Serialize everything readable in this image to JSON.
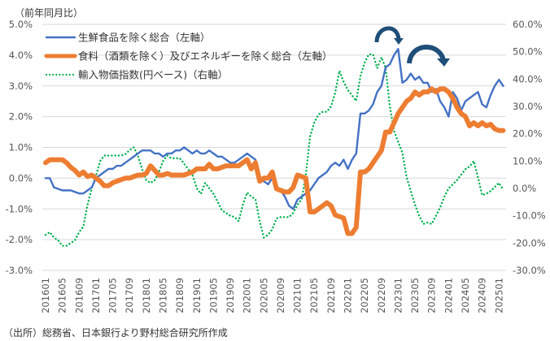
{
  "chart_data": {
    "type": "line",
    "y_title": "（前年同月比）",
    "x_start": "201601",
    "x_tick_labels": [
      "201601",
      "201605",
      "201609",
      "201701",
      "201705",
      "201709",
      "201801",
      "201805",
      "201809",
      "201901",
      "201905",
      "201909",
      "202001",
      "202005",
      "202009",
      "202101",
      "202105",
      "202109",
      "202201",
      "202205",
      "202209",
      "202301",
      "202305",
      "202309",
      "202401",
      "202405",
      "202409",
      "202501"
    ],
    "left_axis": {
      "min": -3,
      "max": 5,
      "step": 1,
      "labels": [
        "5.0%",
        "4.0%",
        "3.0%",
        "2.0%",
        "1.0%",
        "0.0%",
        "-1.0%",
        "-2.0%",
        "-3.0%"
      ]
    },
    "right_axis": {
      "min": -30,
      "max": 60,
      "step": 10,
      "labels": [
        "60.0%",
        "50.0%",
        "40.0%",
        "30.0%",
        "20.0%",
        "10.0%",
        "0.0%",
        "-10.0%",
        "-20.0%",
        "-30.0%"
      ]
    },
    "grid": true,
    "legend_position": "top-left",
    "series": [
      {
        "name": "生鮮食品を除く総合（左軸）",
        "axis": "left",
        "color": "#4472C4",
        "style": "solid",
        "values": [
          0.0,
          0.0,
          -0.3,
          -0.35,
          -0.4,
          -0.4,
          -0.4,
          -0.45,
          -0.5,
          -0.5,
          -0.4,
          -0.3,
          0.0,
          0.1,
          0.2,
          0.3,
          0.3,
          0.4,
          0.4,
          0.5,
          0.6,
          0.7,
          0.8,
          0.9,
          0.9,
          0.9,
          0.8,
          0.8,
          0.7,
          0.8,
          0.8,
          0.9,
          0.9,
          1.0,
          0.9,
          0.8,
          0.9,
          0.8,
          0.8,
          0.9,
          0.8,
          0.7,
          0.7,
          0.6,
          0.5,
          0.5,
          0.6,
          0.7,
          0.8,
          0.7,
          0.6,
          -0.1,
          -0.1,
          -0.2,
          0.0,
          -0.3,
          -0.4,
          -0.6,
          -0.9,
          -1.0,
          -0.7,
          -0.6,
          -0.5,
          -0.4,
          -0.2,
          0.0,
          0.1,
          0.2,
          0.4,
          0.5,
          0.4,
          0.6,
          0.3,
          0.6,
          0.8,
          2.1,
          2.1,
          2.2,
          2.4,
          2.8,
          3.0,
          3.6,
          3.7,
          4.0,
          4.2,
          3.1,
          3.2,
          3.4,
          3.2,
          3.3,
          3.1,
          3.1,
          2.8,
          2.9,
          2.5,
          2.3,
          2.0,
          2.8,
          2.6,
          2.2,
          2.5,
          2.6,
          2.7,
          2.8,
          2.4,
          2.3,
          2.7,
          3.0,
          3.2,
          3.0
        ]
      },
      {
        "name": "食料（酒類を除く）及びエネルギーを除く総合（左軸）",
        "axis": "left",
        "color": "#ED7D31",
        "style": "thick",
        "values": [
          0.5,
          0.6,
          0.6,
          0.6,
          0.6,
          0.5,
          0.35,
          0.25,
          0.1,
          0.2,
          0.05,
          0.1,
          0.0,
          -0.1,
          -0.25,
          -0.25,
          -0.15,
          -0.1,
          -0.05,
          0.0,
          0.0,
          0.05,
          0.1,
          0.1,
          0.15,
          0.4,
          0.25,
          0.1,
          0.1,
          0.15,
          0.1,
          0.1,
          0.1,
          0.1,
          0.15,
          0.2,
          0.3,
          0.3,
          0.3,
          0.45,
          0.3,
          0.3,
          0.35,
          0.4,
          0.4,
          0.4,
          0.4,
          0.5,
          0.6,
          0.3,
          0.5,
          -0.1,
          0.0,
          0.0,
          0.2,
          -0.35,
          -0.4,
          -0.45,
          -0.45,
          -0.3,
          0.1,
          0.05,
          0.0,
          -1.1,
          -1.1,
          -1.0,
          -0.9,
          -0.8,
          -0.9,
          -1.2,
          -1.25,
          -1.3,
          -1.8,
          -1.8,
          -1.6,
          0.2,
          0.2,
          0.3,
          0.5,
          0.7,
          0.9,
          1.5,
          1.5,
          1.8,
          2.1,
          2.3,
          2.5,
          2.6,
          2.8,
          2.7,
          2.8,
          2.8,
          2.9,
          2.8,
          2.9,
          2.9,
          2.8,
          2.6,
          2.3,
          2.1,
          2.0,
          1.7,
          1.8,
          1.7,
          1.8,
          1.7,
          1.75,
          1.6,
          1.55,
          1.55
        ]
      },
      {
        "name": "輸入物価指数(円ベース)（右軸）",
        "axis": "right",
        "color": "#00B050",
        "style": "dotted",
        "values": [
          -17,
          -16,
          -18,
          -19,
          -21,
          -21,
          -20,
          -19,
          -16,
          -14,
          -6,
          0,
          4.5,
          10,
          12,
          12,
          12,
          12,
          12,
          12.5,
          14,
          15,
          12,
          7,
          3,
          2,
          3,
          6,
          10,
          12,
          11,
          11,
          11,
          9,
          7,
          5,
          0,
          -2,
          2,
          0,
          -2,
          -5,
          -8,
          -9,
          -10,
          -10.5,
          -12,
          -6,
          -1.5,
          -3,
          -4,
          -12,
          -18,
          -17,
          -15,
          -11,
          -10.5,
          -10.5,
          -10.5,
          -9,
          -6,
          -4,
          5,
          19,
          24,
          27,
          28,
          28,
          30,
          35,
          43,
          39,
          36,
          34,
          32,
          41,
          46,
          49,
          49,
          44,
          48,
          44,
          30,
          21,
          17,
          13,
          4,
          -1,
          -6,
          -10,
          -13,
          -12.5,
          -13,
          -10,
          -7,
          -3,
          0,
          1.5,
          3,
          5,
          7,
          8,
          10,
          4,
          -2.5,
          -2,
          -1,
          0.5,
          2,
          -0.5
        ]
      }
    ]
  },
  "annotation_arrows": {
    "color": "#1F4E79",
    "count": 2
  },
  "source": "（出所）総務省、日本銀行より野村総合研究所作成"
}
